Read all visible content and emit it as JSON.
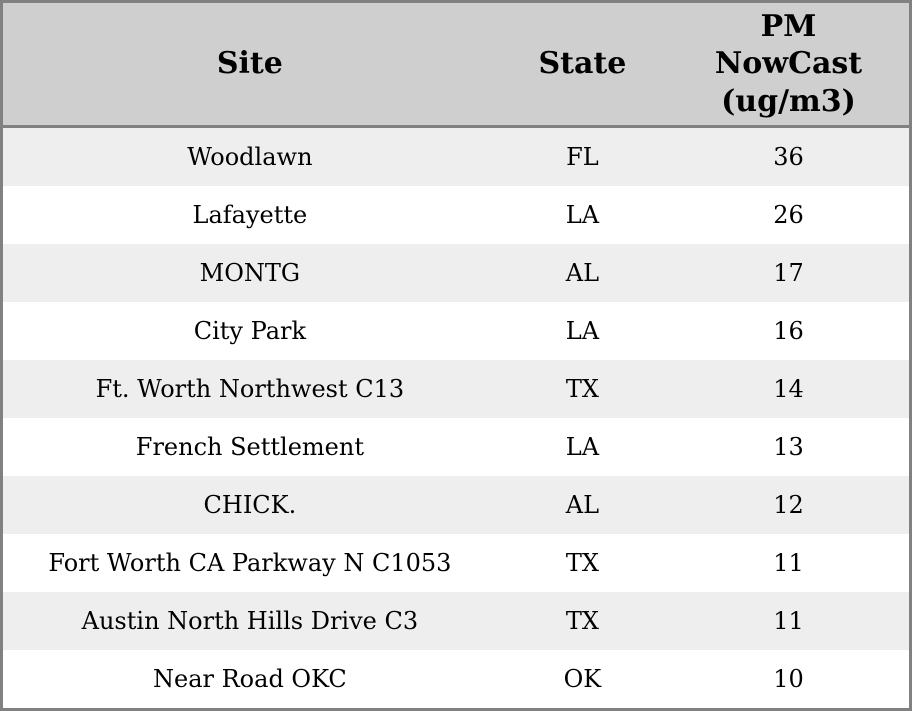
{
  "colors": {
    "header_bg": "#cfcfcf",
    "border_color": "#818181",
    "row_odd_bg": "#eeeeee",
    "row_even_bg": "#ffffff"
  },
  "chart_data": {
    "type": "table",
    "title": "",
    "columns": [
      "Site",
      "State",
      "PM NowCast (ug/m3)"
    ],
    "rows": [
      [
        "Woodlawn",
        "FL",
        36
      ],
      [
        "Lafayette",
        "LA",
        26
      ],
      [
        "MONTG",
        "AL",
        17
      ],
      [
        "City Park",
        "LA",
        16
      ],
      [
        "Ft. Worth Northwest C13",
        "TX",
        14
      ],
      [
        "French Settlement",
        "LA",
        13
      ],
      [
        "CHICK.",
        "AL",
        12
      ],
      [
        "Fort Worth CA Parkway N C1053",
        "TX",
        11
      ],
      [
        "Austin North Hills Drive C3",
        "TX",
        11
      ],
      [
        "Near Road OKC",
        "OK",
        10
      ]
    ],
    "layout": {
      "striped_rows": true,
      "alignment": "center",
      "header_position": "top"
    }
  }
}
